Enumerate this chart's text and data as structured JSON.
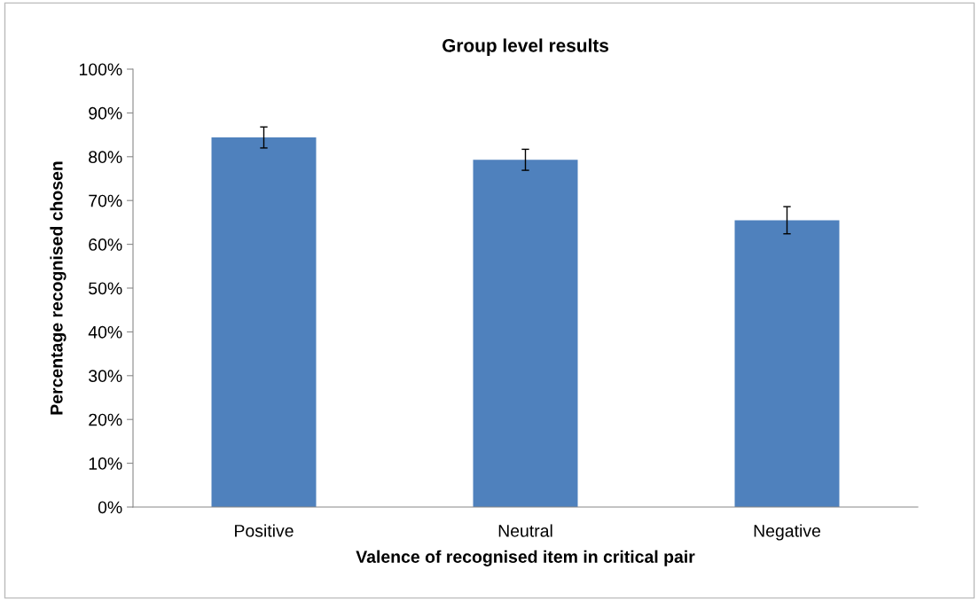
{
  "chart_data": {
    "type": "bar",
    "title": "Group level results",
    "xlabel": "Valence of recognised item in critical pair",
    "ylabel": "Percentage recognised chosen",
    "categories": [
      "Positive",
      "Neutral",
      "Negative"
    ],
    "values": [
      84.4,
      79.3,
      65.5
    ],
    "errors": [
      2.4,
      2.4,
      3.1
    ],
    "color": "#4f81bd",
    "ylim": [
      0,
      100
    ],
    "yticks": [
      {
        "value": 0,
        "label": "0%"
      },
      {
        "value": 10,
        "label": "10%"
      },
      {
        "value": 20,
        "label": "20%"
      },
      {
        "value": 30,
        "label": "30%"
      },
      {
        "value": 40,
        "label": "40%"
      },
      {
        "value": 50,
        "label": "50%"
      },
      {
        "value": 60,
        "label": "60%"
      },
      {
        "value": 70,
        "label": "70%"
      },
      {
        "value": 80,
        "label": "80%"
      },
      {
        "value": 90,
        "label": "90%"
      },
      {
        "value": 100,
        "label": "100%"
      }
    ],
    "grid": false
  }
}
